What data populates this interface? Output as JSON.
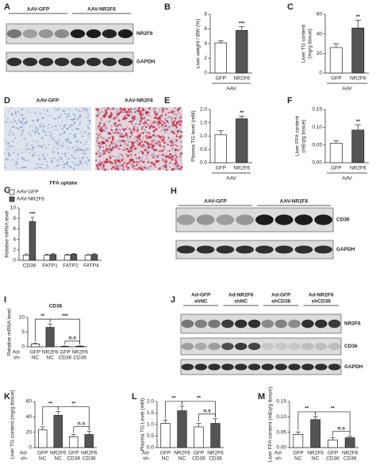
{
  "chart_data": [
    {
      "panel": "B",
      "type": "bar",
      "ylabel": [
        "Liver weight / BW (%)"
      ],
      "categories": [
        "GFP",
        "NR2F6"
      ],
      "group_label": "AAV",
      "series": [
        {
          "values": [
            4.1,
            5.8
          ],
          "errors": [
            0.3,
            0.5
          ]
        }
      ],
      "colors": [
        "#ffffff",
        "#555555"
      ],
      "ylim": [
        0,
        8
      ],
      "yticks": [
        0,
        2,
        4,
        6,
        8
      ],
      "annotations": [
        {
          "text": "***",
          "from": 1,
          "to": 1
        }
      ]
    },
    {
      "panel": "C",
      "type": "bar",
      "ylabel": [
        "Liver TG content",
        "(mg/g tissue)"
      ],
      "categories": [
        "GFP",
        "NR2F6"
      ],
      "group_label": "AAV",
      "series": [
        {
          "values": [
            26,
            46
          ],
          "errors": [
            4,
            8
          ]
        }
      ],
      "colors": [
        "#ffffff",
        "#555555"
      ],
      "ylim": [
        0,
        60
      ],
      "yticks": [
        0,
        20,
        40,
        60
      ],
      "annotations": [
        {
          "text": "**",
          "from": 1,
          "to": 1
        }
      ]
    },
    {
      "panel": "E",
      "type": "bar",
      "ylabel": [
        "Plasma TG level (mM)"
      ],
      "categories": [
        "GFP",
        "NR2F6"
      ],
      "group_label": "AAV",
      "series": [
        {
          "values": [
            1.05,
            1.65
          ],
          "errors": [
            0.15,
            0.1
          ]
        }
      ],
      "colors": [
        "#ffffff",
        "#555555"
      ],
      "ylim": [
        0,
        2
      ],
      "yticks": [
        {
          "value": 0,
          "label": "0.0"
        },
        0.5,
        {
          "value": 1,
          "label": "1.0"
        },
        1.5,
        {
          "value": 2,
          "label": "2.0"
        }
      ],
      "annotations": [
        {
          "text": "**",
          "from": 1,
          "to": 1
        }
      ]
    },
    {
      "panel": "F",
      "type": "bar",
      "ylabel": [
        "Liver FFA content",
        "(mEq/g tissue)"
      ],
      "categories": [
        "GFP",
        "NR2F6"
      ],
      "group_label": "AAV",
      "series": [
        {
          "values": [
            0.055,
            0.092
          ],
          "errors": [
            0.007,
            0.015
          ]
        }
      ],
      "colors": [
        "#ffffff",
        "#555555"
      ],
      "ylim": [
        0,
        0.15
      ],
      "yticks": [
        {
          "value": 0,
          "label": "0.00"
        },
        0.05,
        {
          "value": 0.1,
          "label": "0.10"
        },
        0.15
      ],
      "annotations": [
        {
          "text": "**",
          "from": 1,
          "to": 1
        }
      ]
    },
    {
      "panel": "G",
      "type": "bar",
      "title": "FFA uptake",
      "ylabel": [
        "Relative mRNA level"
      ],
      "categories": [
        "CD36",
        "FATP1",
        "FATP2",
        "FATP4"
      ],
      "series": [
        {
          "name": "AAV-GFP",
          "color": "#ffffff",
          "values": [
            1,
            1,
            1,
            1
          ],
          "errors": [
            0.2,
            0.15,
            0.15,
            0.1
          ]
        },
        {
          "name": "AAV-NR2F6",
          "color": "#555555",
          "values": [
            7.4,
            1.1,
            1.15,
            1.1
          ],
          "errors": [
            0.8,
            0.15,
            0.15,
            0.15
          ]
        }
      ],
      "legend": "top-left",
      "ylim": [
        0,
        10
      ],
      "yticks": [
        0,
        2,
        4,
        6,
        8,
        10
      ],
      "annotations": [
        {
          "text": "***",
          "from": 0,
          "to": 0,
          "series": 1
        }
      ]
    },
    {
      "panel": "I",
      "type": "bar",
      "title": "CD36",
      "ylabel": [
        "Relative mRNA level"
      ],
      "categories": [
        "GFP",
        "NR2F6",
        "GFP",
        "NR2F6"
      ],
      "categories_row2": [
        "NC",
        "NC",
        "CD36",
        "CD36"
      ],
      "row_labels": [
        "Ad-",
        "sh-"
      ],
      "series": [
        {
          "values": [
            1,
            6.6,
            0.15,
            0.2
          ],
          "errors": [
            0.2,
            1.2,
            0.1,
            0.1
          ]
        }
      ],
      "colors": [
        "#ffffff",
        "#555555",
        "#ffffff",
        "#555555"
      ],
      "ylim": [
        0,
        10
      ],
      "yticks": [
        0,
        5,
        10
      ],
      "annotations": [
        {
          "text": "**",
          "from": 0,
          "to": 1
        },
        {
          "text": "***",
          "from": 1,
          "to": 3
        },
        {
          "text": "n.s",
          "from": 2,
          "to": 3
        }
      ]
    },
    {
      "panel": "K",
      "type": "bar",
      "ylabel": [
        "Liver TG content (mg/g tissue)"
      ],
      "categories": [
        "GFP",
        "NR2F6",
        "GFP",
        "NR2F6"
      ],
      "categories_row2": [
        "NC",
        "NC",
        "CD36",
        "CD36"
      ],
      "row_labels": [
        "Ad-",
        "sh-"
      ],
      "series": [
        {
          "values": [
            23,
            42,
            14,
            17
          ],
          "errors": [
            4,
            5,
            3,
            4
          ]
        }
      ],
      "colors": [
        "#ffffff",
        "#555555",
        "#ffffff",
        "#555555"
      ],
      "ylim": [
        0,
        60
      ],
      "yticks": [
        0,
        20,
        40,
        60
      ],
      "annotations": [
        {
          "text": "**",
          "from": 0,
          "to": 1
        },
        {
          "text": "**",
          "from": 1,
          "to": 3
        },
        {
          "text": "n.s",
          "from": 2,
          "to": 3
        }
      ]
    },
    {
      "panel": "L",
      "type": "bar",
      "ylabel": [
        "Plasma TG Level (mM)"
      ],
      "categories": [
        "GFP",
        "NR2F6",
        "GFP",
        "NR2F6"
      ],
      "categories_row2": [
        "NC",
        "NC",
        "CD36",
        "CD36"
      ],
      "row_labels": [
        "Ad-",
        "sh-"
      ],
      "series": [
        {
          "values": [
            1.05,
            1.6,
            0.9,
            1.05
          ],
          "errors": [
            0.15,
            0.2,
            0.15,
            0.2
          ]
        }
      ],
      "colors": [
        "#ffffff",
        "#555555",
        "#ffffff",
        "#555555"
      ],
      "ylim": [
        0,
        2
      ],
      "yticks": [
        {
          "value": 0,
          "label": "0.0"
        },
        0.5,
        {
          "value": 1,
          "label": "1.0"
        },
        1.5,
        {
          "value": 2,
          "label": "2.0"
        }
      ],
      "annotations": [
        {
          "text": "**",
          "from": 0,
          "to": 1
        },
        {
          "text": "**",
          "from": 1,
          "to": 3
        },
        {
          "text": "n.s",
          "from": 2,
          "to": 3
        }
      ]
    },
    {
      "panel": "M",
      "type": "bar",
      "ylabel": [
        "Liver FFA content (mEq/g tissue)"
      ],
      "categories": [
        "GFP",
        "NR2F6",
        "GFP",
        "NR2F6"
      ],
      "categories_row2": [
        "NC",
        "NC",
        "CD36",
        "CD36"
      ],
      "row_labels": [
        "Ad-",
        "sh-"
      ],
      "series": [
        {
          "values": [
            0.043,
            0.091,
            0.025,
            0.032
          ],
          "errors": [
            0.008,
            0.01,
            0.007,
            0.005
          ]
        }
      ],
      "colors": [
        "#ffffff",
        "#555555",
        "#ffffff",
        "#555555"
      ],
      "ylim": [
        0,
        0.15
      ],
      "yticks": [
        {
          "value": 0,
          "label": "0.00"
        },
        0.05,
        {
          "value": 0.1,
          "label": "0.10"
        },
        0.15
      ],
      "annotations": [
        {
          "text": "**",
          "from": 0,
          "to": 1
        },
        {
          "text": "**",
          "from": 1,
          "to": 3
        },
        {
          "text": "n.s",
          "from": 2,
          "to": 3
        }
      ]
    }
  ],
  "blots": [
    {
      "panel": "A",
      "groups": [
        [
          "AAV-GFP"
        ],
        [
          "AAV-NR2F6"
        ]
      ],
      "rows": [
        "NR2F6",
        "GAPDH"
      ]
    },
    {
      "panel": "H",
      "groups": [
        [
          "AAV-GFP"
        ],
        [
          "AAV-NR2F6"
        ]
      ],
      "rows": [
        "CD36",
        "GAPDH"
      ]
    },
    {
      "panel": "J",
      "groups": [
        [
          "Ad-GFP",
          "shNC"
        ],
        [
          "Ad-NR2F6",
          "shNC"
        ],
        [
          "Ad-GFP",
          "shCD36"
        ],
        [
          "Ad-NR2F6",
          "shCD36"
        ]
      ],
      "rows": [
        "NR2F6",
        "CD36",
        "GAPDH"
      ]
    }
  ],
  "staining": {
    "panel": "D",
    "labels": [
      "AAV-GFP",
      "AAV-NR2F6"
    ]
  }
}
